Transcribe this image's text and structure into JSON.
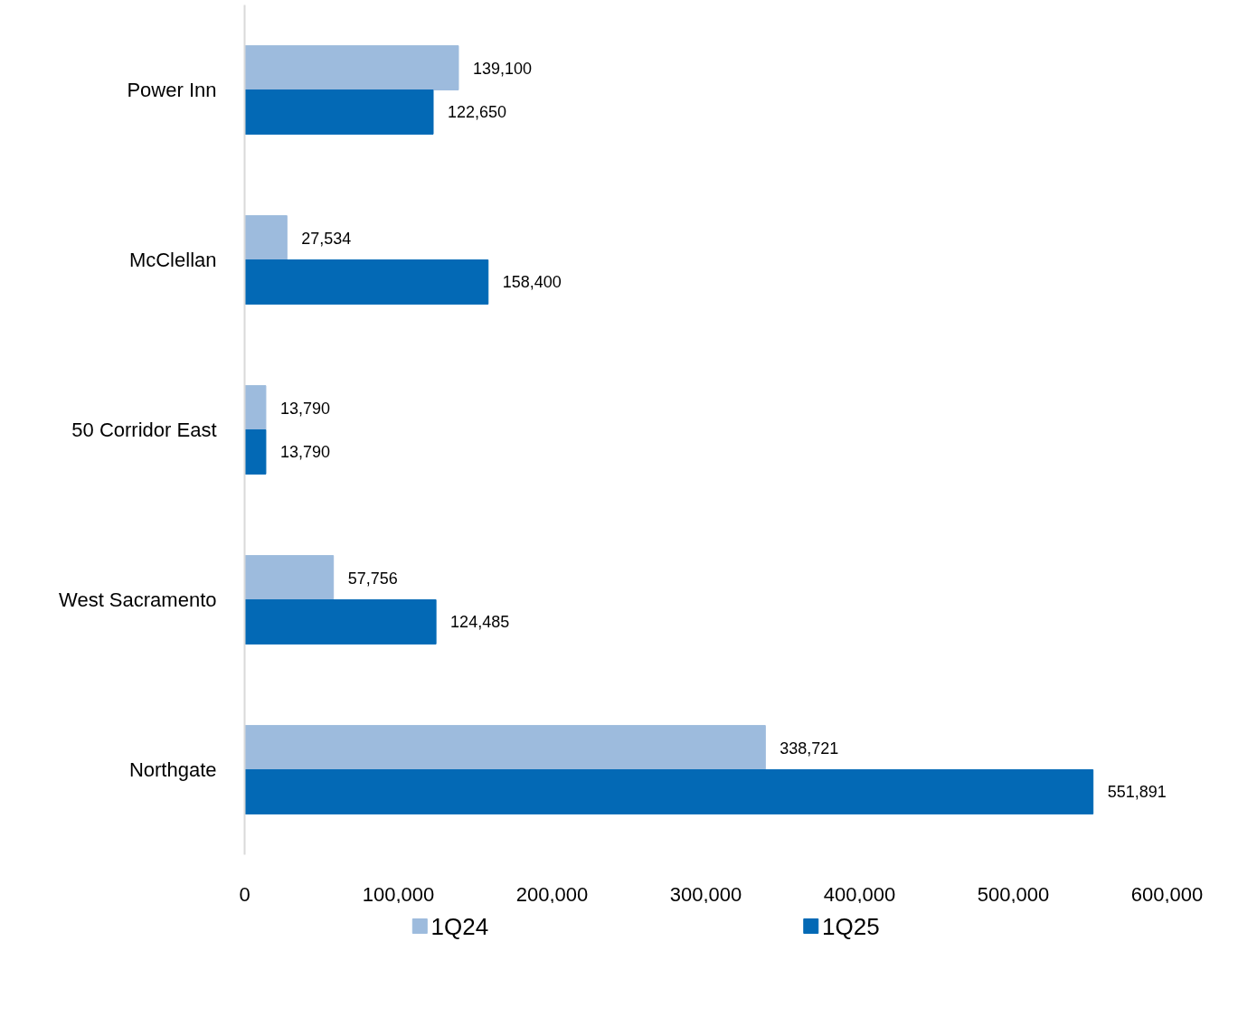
{
  "chart_data": {
    "type": "bar",
    "orientation": "horizontal",
    "categories": [
      "Power Inn",
      "McClellan",
      "50 Corridor East",
      "West Sacramento",
      "Northgate"
    ],
    "series": [
      {
        "name": "1Q24",
        "color": "#9dbbdd",
        "values": [
          139100,
          27534,
          13790,
          57756,
          338721
        ],
        "value_labels": [
          "139,100",
          "27,534",
          "13,790",
          "57,756",
          "338,721"
        ]
      },
      {
        "name": "1Q25",
        "color": "#0369b5",
        "values": [
          122650,
          158400,
          13790,
          124485,
          551891
        ],
        "value_labels": [
          "122,650",
          "158,400",
          "13,790",
          "124,485",
          "551,891"
        ]
      }
    ],
    "xlim": [
      0,
      600000
    ],
    "xticks": [
      {
        "value": 0,
        "label": "0"
      },
      {
        "value": 100000,
        "label": "100,000"
      },
      {
        "value": 200000,
        "label": "200,000"
      },
      {
        "value": 300000,
        "label": "300,000"
      },
      {
        "value": 400000,
        "label": "400,000"
      },
      {
        "value": 500000,
        "label": "500,000"
      },
      {
        "value": 600000,
        "label": "600,000"
      }
    ],
    "legend": "bottom",
    "grid": false
  }
}
